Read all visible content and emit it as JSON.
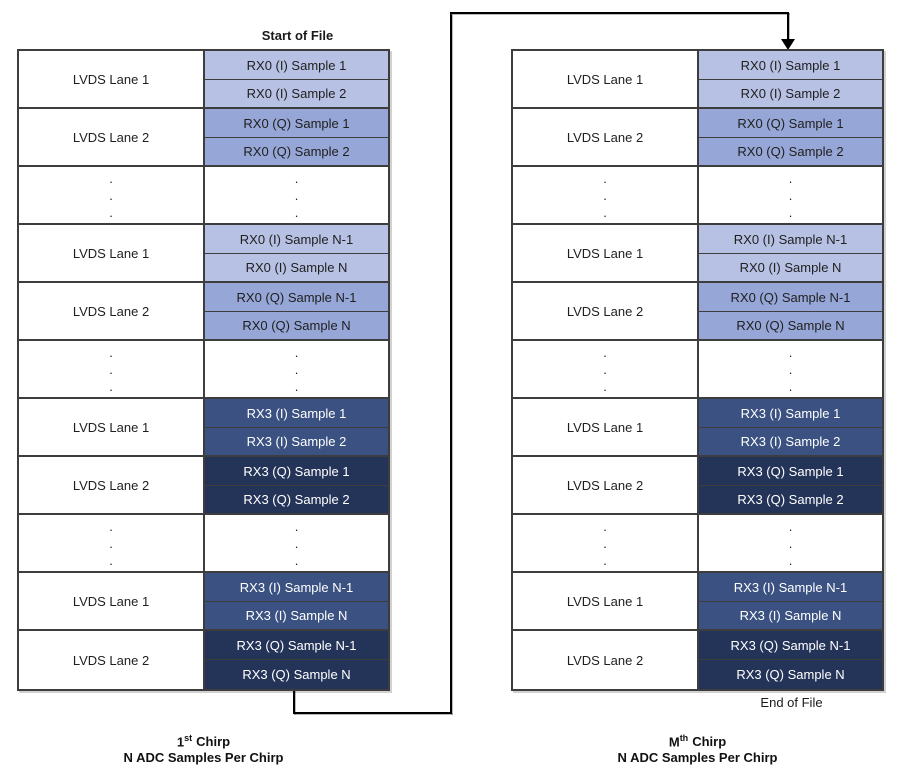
{
  "colors": {
    "border": "#3d3d3d",
    "arrow": "#000000",
    "page_background": "#ffffff",
    "lane_cell_bg": "#ffffff"
  },
  "cell_shades": {
    "rx0_i": {
      "bg": "#b7c1e4",
      "fg": "#1f1f1f"
    },
    "rx0_q": {
      "bg": "#96a6d6",
      "fg": "#1f1f1f"
    },
    "rx3_i": {
      "bg": "#3a5181",
      "fg": "#ffffff"
    },
    "rx3_q": {
      "bg": "#243459",
      "fg": "#ffffff"
    }
  },
  "labels": {
    "start_of_file": "Start of File",
    "end_of_file": "End of File"
  },
  "ellipsis": {
    "glyph": ".",
    "count": 3
  },
  "chirps": [
    {
      "caption": {
        "ordinal": "1",
        "suffix": "st",
        "word": "Chirp",
        "line2": "N ADC Samples Per Chirp"
      },
      "lane_column": [
        {
          "type": "lane",
          "label": "LVDS Lane 1"
        },
        {
          "type": "lane",
          "label": "LVDS Lane 2"
        },
        {
          "type": "dots"
        },
        {
          "type": "lane",
          "label": "LVDS Lane 1"
        },
        {
          "type": "lane",
          "label": "LVDS Lane 2"
        },
        {
          "type": "dots"
        },
        {
          "type": "lane",
          "label": "LVDS Lane 1"
        },
        {
          "type": "lane",
          "label": "LVDS Lane 2"
        },
        {
          "type": "dots"
        },
        {
          "type": "lane",
          "label": "LVDS Lane 1"
        },
        {
          "type": "lane",
          "label": "LVDS Lane 2"
        }
      ],
      "sample_column": [
        {
          "type": "sample",
          "label": "RX0 (I) Sample 1",
          "shade": "rx0_i"
        },
        {
          "type": "sample",
          "label": "RX0 (I) Sample 2",
          "shade": "rx0_i"
        },
        {
          "type": "sample",
          "label": "RX0 (Q) Sample 1",
          "shade": "rx0_q"
        },
        {
          "type": "sample",
          "label": "RX0 (Q) Sample 2",
          "shade": "rx0_q"
        },
        {
          "type": "dots"
        },
        {
          "type": "sample",
          "label": "RX0 (I) Sample N-1",
          "shade": "rx0_i"
        },
        {
          "type": "sample",
          "label": "RX0 (I) Sample N",
          "shade": "rx0_i"
        },
        {
          "type": "sample",
          "label": "RX0 (Q) Sample N-1",
          "shade": "rx0_q"
        },
        {
          "type": "sample",
          "label": "RX0 (Q) Sample N",
          "shade": "rx0_q"
        },
        {
          "type": "dots"
        },
        {
          "type": "sample",
          "label": "RX3 (I) Sample 1",
          "shade": "rx3_i"
        },
        {
          "type": "sample",
          "label": "RX3 (I) Sample 2",
          "shade": "rx3_i"
        },
        {
          "type": "sample",
          "label": "RX3 (Q) Sample 1",
          "shade": "rx3_q"
        },
        {
          "type": "sample",
          "label": "RX3 (Q) Sample 2",
          "shade": "rx3_q"
        },
        {
          "type": "dots"
        },
        {
          "type": "sample",
          "label": "RX3 (I) Sample N-1",
          "shade": "rx3_i"
        },
        {
          "type": "sample",
          "label": "RX3 (I) Sample N",
          "shade": "rx3_i"
        },
        {
          "type": "sample",
          "label": "RX3 (Q) Sample N-1",
          "shade": "rx3_q"
        },
        {
          "type": "sample",
          "label": "RX3 (Q) Sample N",
          "shade": "rx3_q"
        }
      ]
    },
    {
      "caption": {
        "ordinal": "M",
        "suffix": "th",
        "word": "Chirp",
        "line2": "N ADC Samples Per Chirp"
      },
      "lane_column": [
        {
          "type": "lane",
          "label": "LVDS Lane 1"
        },
        {
          "type": "lane",
          "label": "LVDS Lane 2"
        },
        {
          "type": "dots"
        },
        {
          "type": "lane",
          "label": "LVDS Lane 1"
        },
        {
          "type": "lane",
          "label": "LVDS Lane 2"
        },
        {
          "type": "dots"
        },
        {
          "type": "lane",
          "label": "LVDS Lane 1"
        },
        {
          "type": "lane",
          "label": "LVDS Lane 2"
        },
        {
          "type": "dots"
        },
        {
          "type": "lane",
          "label": "LVDS Lane 1"
        },
        {
          "type": "lane",
          "label": "LVDS Lane 2"
        }
      ],
      "sample_column": [
        {
          "type": "sample",
          "label": "RX0 (I) Sample 1",
          "shade": "rx0_i"
        },
        {
          "type": "sample",
          "label": "RX0 (I) Sample 2",
          "shade": "rx0_i"
        },
        {
          "type": "sample",
          "label": "RX0 (Q) Sample 1",
          "shade": "rx0_q"
        },
        {
          "type": "sample",
          "label": "RX0 (Q) Sample 2",
          "shade": "rx0_q"
        },
        {
          "type": "dots"
        },
        {
          "type": "sample",
          "label": "RX0 (I) Sample N-1",
          "shade": "rx0_i"
        },
        {
          "type": "sample",
          "label": "RX0 (I) Sample N",
          "shade": "rx0_i"
        },
        {
          "type": "sample",
          "label": "RX0 (Q) Sample N-1",
          "shade": "rx0_q"
        },
        {
          "type": "sample",
          "label": "RX0 (Q) Sample N",
          "shade": "rx0_q"
        },
        {
          "type": "dots"
        },
        {
          "type": "sample",
          "label": "RX3 (I) Sample 1",
          "shade": "rx3_i"
        },
        {
          "type": "sample",
          "label": "RX3 (I) Sample 2",
          "shade": "rx3_i"
        },
        {
          "type": "sample",
          "label": "RX3 (Q) Sample 1",
          "shade": "rx3_q"
        },
        {
          "type": "sample",
          "label": "RX3 (Q) Sample 2",
          "shade": "rx3_q"
        },
        {
          "type": "dots"
        },
        {
          "type": "sample",
          "label": "RX3 (I) Sample N-1",
          "shade": "rx3_i"
        },
        {
          "type": "sample",
          "label": "RX3 (I) Sample N",
          "shade": "rx3_i"
        },
        {
          "type": "sample",
          "label": "RX3 (Q) Sample N-1",
          "shade": "rx3_q"
        },
        {
          "type": "sample",
          "label": "RX3 (Q) Sample N",
          "shade": "rx3_q"
        }
      ]
    }
  ]
}
